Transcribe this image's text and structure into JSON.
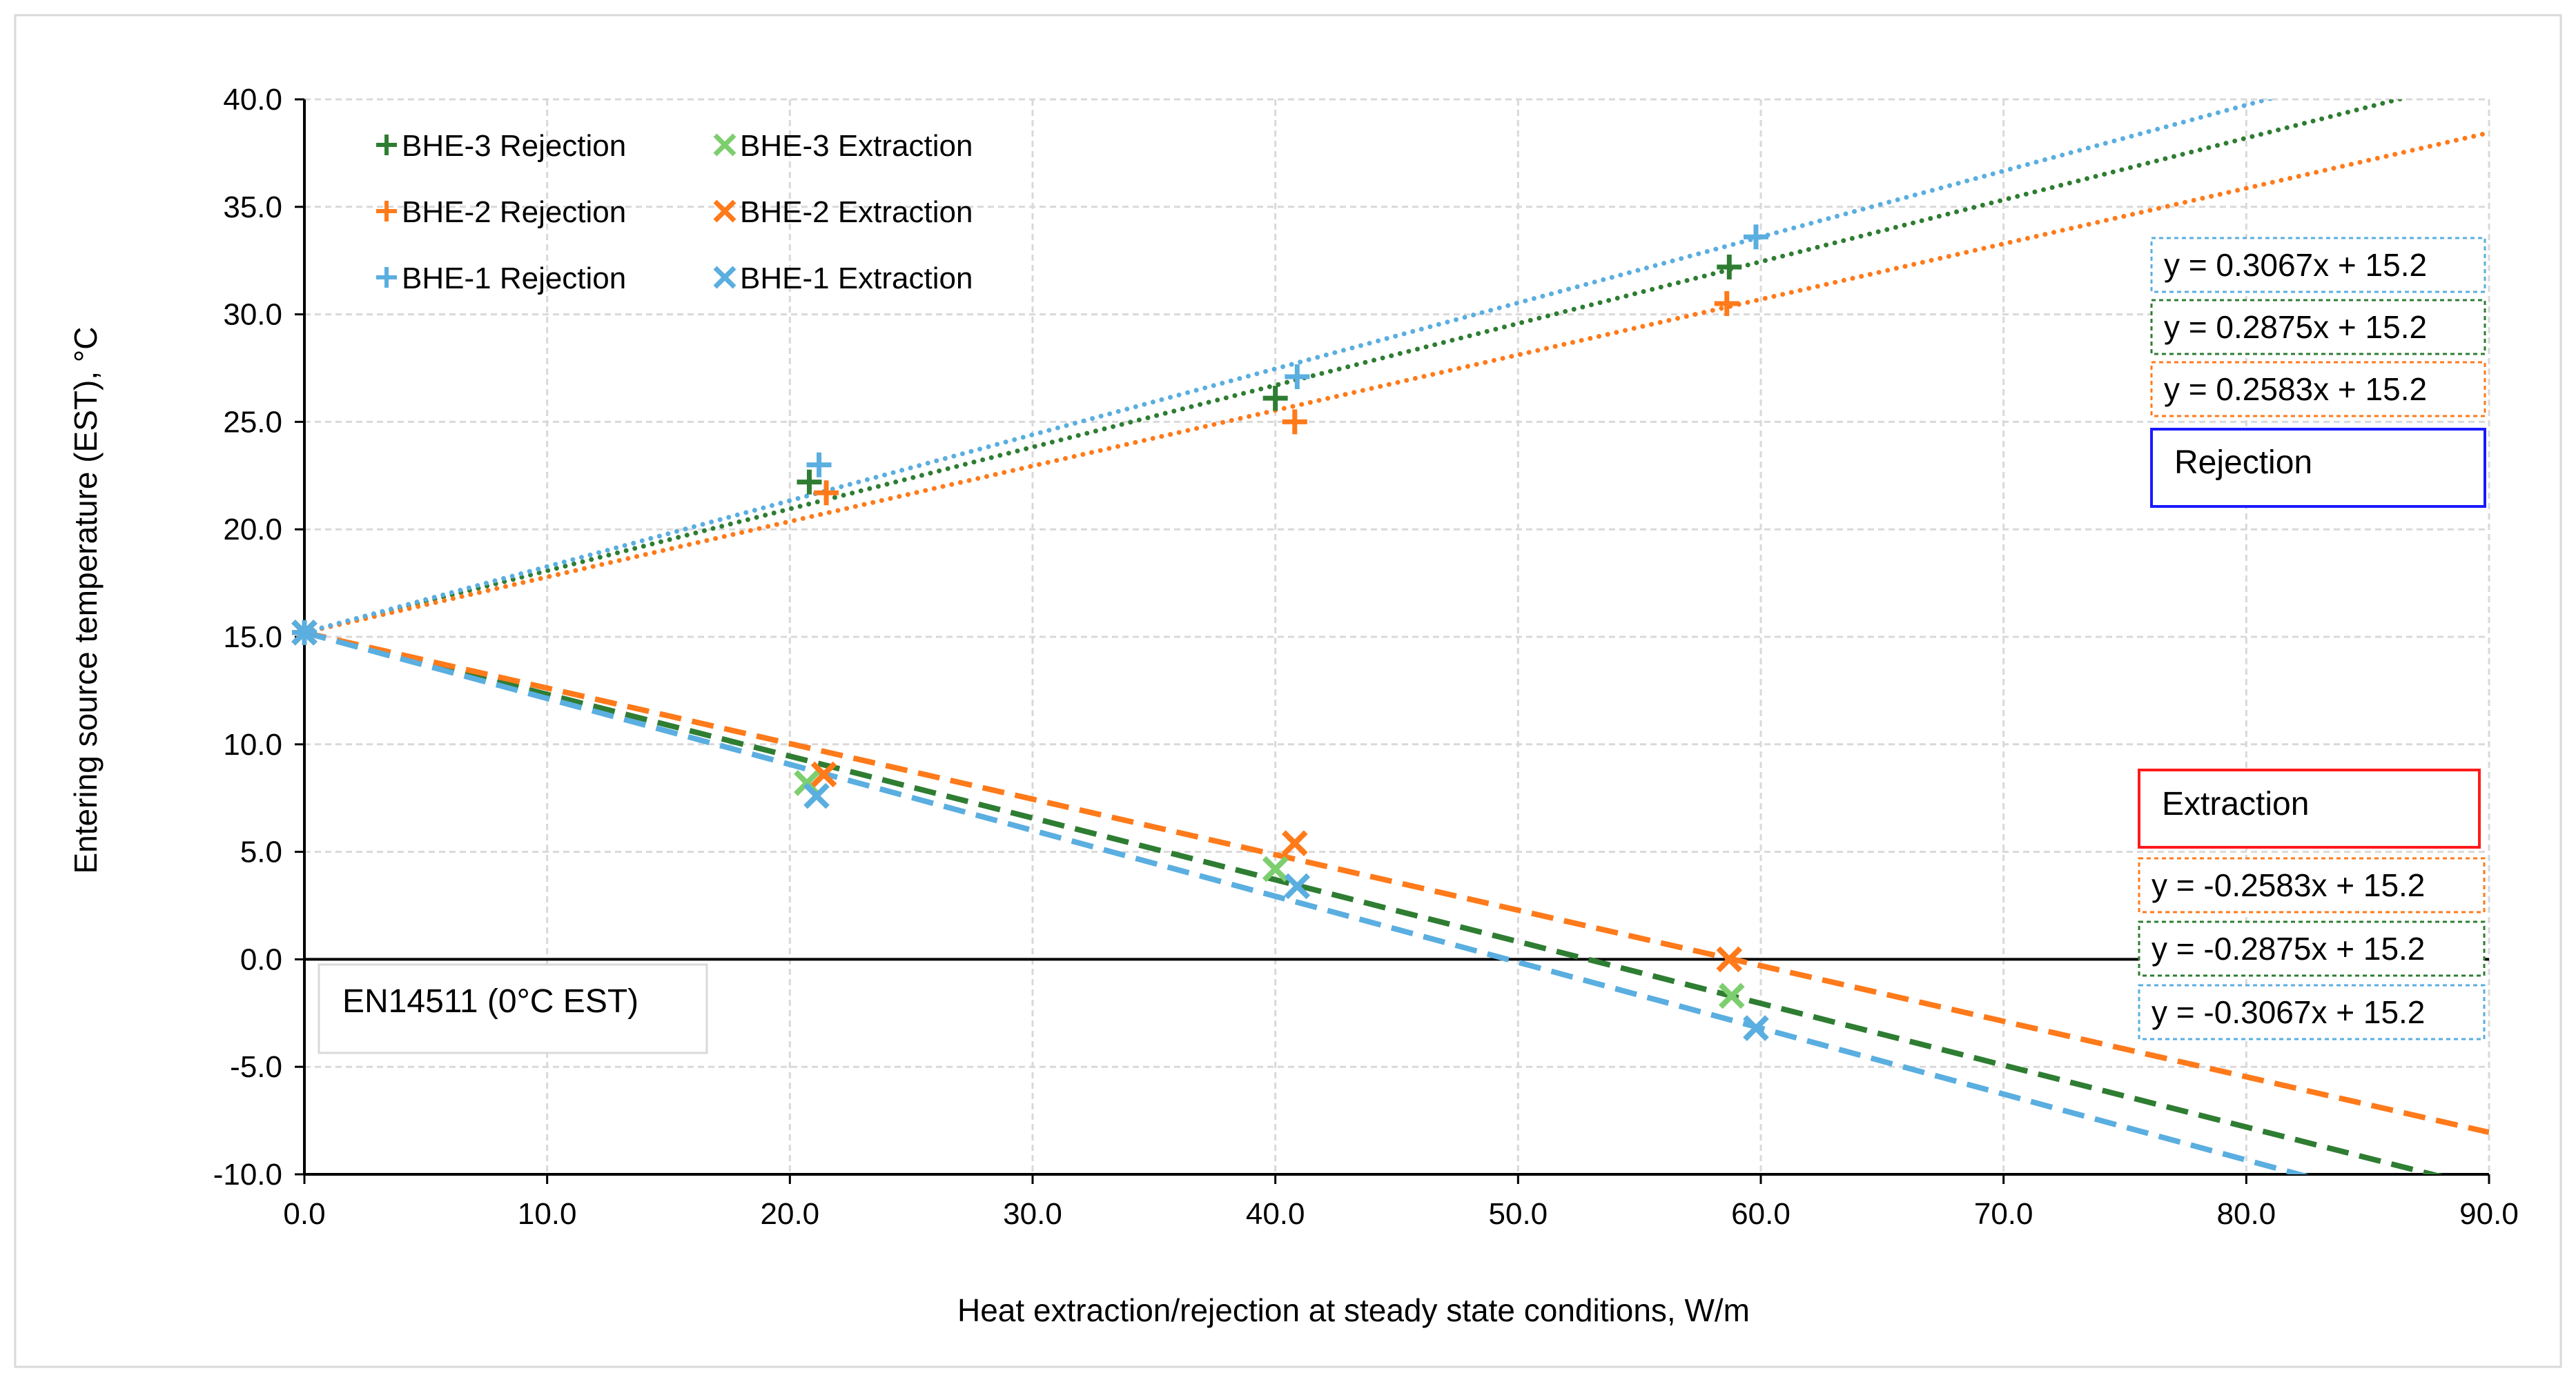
{
  "chart_data": {
    "type": "scatter",
    "title": "",
    "xlabel": "Heat extraction/rejection at steady state conditions, W/m",
    "ylabel": "Entering source temperature (EST), °C",
    "xlim": [
      0,
      90
    ],
    "ylim": [
      -10,
      40
    ],
    "x_ticks": [
      "0.0",
      "10.0",
      "20.0",
      "30.0",
      "40.0",
      "50.0",
      "60.0",
      "70.0",
      "80.0",
      "90.0"
    ],
    "y_ticks": [
      "40.0",
      "35.0",
      "30.0",
      "25.0",
      "20.0",
      "15.0",
      "10.0",
      "5.0",
      "0.0",
      "-5.0",
      "-10.0"
    ],
    "grid": true,
    "legend_position": "top-left",
    "colors": {
      "green": "#2e7d32",
      "lightgreen": "#7dce6e",
      "orange": "#ff7a1a",
      "blue": "#5aaee0",
      "rejection_box": "#1a1aff",
      "extraction_box": "#ff1a1a"
    },
    "series": [
      {
        "name": "BHE-3 Rejection",
        "marker": "plus",
        "color": "green",
        "x": [
          0,
          20.8,
          40.0,
          58.7
        ],
        "y": [
          15.2,
          22.2,
          26.1,
          32.2
        ],
        "trend": {
          "slope": 0.2875,
          "intercept": 15.2,
          "dash": "dotted"
        }
      },
      {
        "name": "BHE-3 Extraction",
        "marker": "x",
        "color": "lightgreen",
        "x": [
          0,
          20.7,
          40.0,
          58.8
        ],
        "y": [
          15.2,
          8.2,
          4.2,
          -1.7
        ],
        "trend": {
          "slope": -0.2875,
          "intercept": 15.2,
          "dash": "dashed",
          "color": "green"
        }
      },
      {
        "name": "BHE-2 Rejection",
        "marker": "plus",
        "color": "orange",
        "x": [
          0,
          21.5,
          40.8,
          58.6
        ],
        "y": [
          15.2,
          21.7,
          25.0,
          30.5
        ],
        "trend": {
          "slope": 0.2583,
          "intercept": 15.2,
          "dash": "dotted"
        }
      },
      {
        "name": "BHE-2 Extraction",
        "marker": "x",
        "color": "orange",
        "x": [
          0,
          21.4,
          40.8,
          58.7
        ],
        "y": [
          15.2,
          8.6,
          5.4,
          0.0
        ],
        "trend": {
          "slope": -0.2583,
          "intercept": 15.2,
          "dash": "dashed"
        }
      },
      {
        "name": "BHE-1 Rejection",
        "marker": "plus",
        "color": "blue",
        "x": [
          0,
          21.2,
          40.9,
          59.8
        ],
        "y": [
          15.2,
          23.0,
          27.1,
          33.6
        ],
        "trend": {
          "slope": 0.3067,
          "intercept": 15.2,
          "dash": "dotted"
        }
      },
      {
        "name": "BHE-1 Extraction",
        "marker": "x",
        "color": "blue",
        "x": [
          0,
          21.1,
          40.9,
          59.8
        ],
        "y": [
          15.2,
          7.6,
          3.4,
          -3.2
        ],
        "trend": {
          "slope": -0.3067,
          "intercept": 15.2,
          "dash": "dashed"
        }
      }
    ],
    "annotations": {
      "rejection_equations": [
        "y = 0.3067x + 15.2",
        "y = 0.2875x + 15.2",
        "y = 0.2583x + 15.2"
      ],
      "rejection_label": "Rejection",
      "extraction_label": "Extraction",
      "extraction_equations": [
        "y = -0.2583x + 15.2",
        "y = -0.2875x + 15.2",
        "y = -0.3067x + 15.2"
      ],
      "reference_label": "EN14511 (0°C EST)",
      "reference_y": 0
    }
  }
}
